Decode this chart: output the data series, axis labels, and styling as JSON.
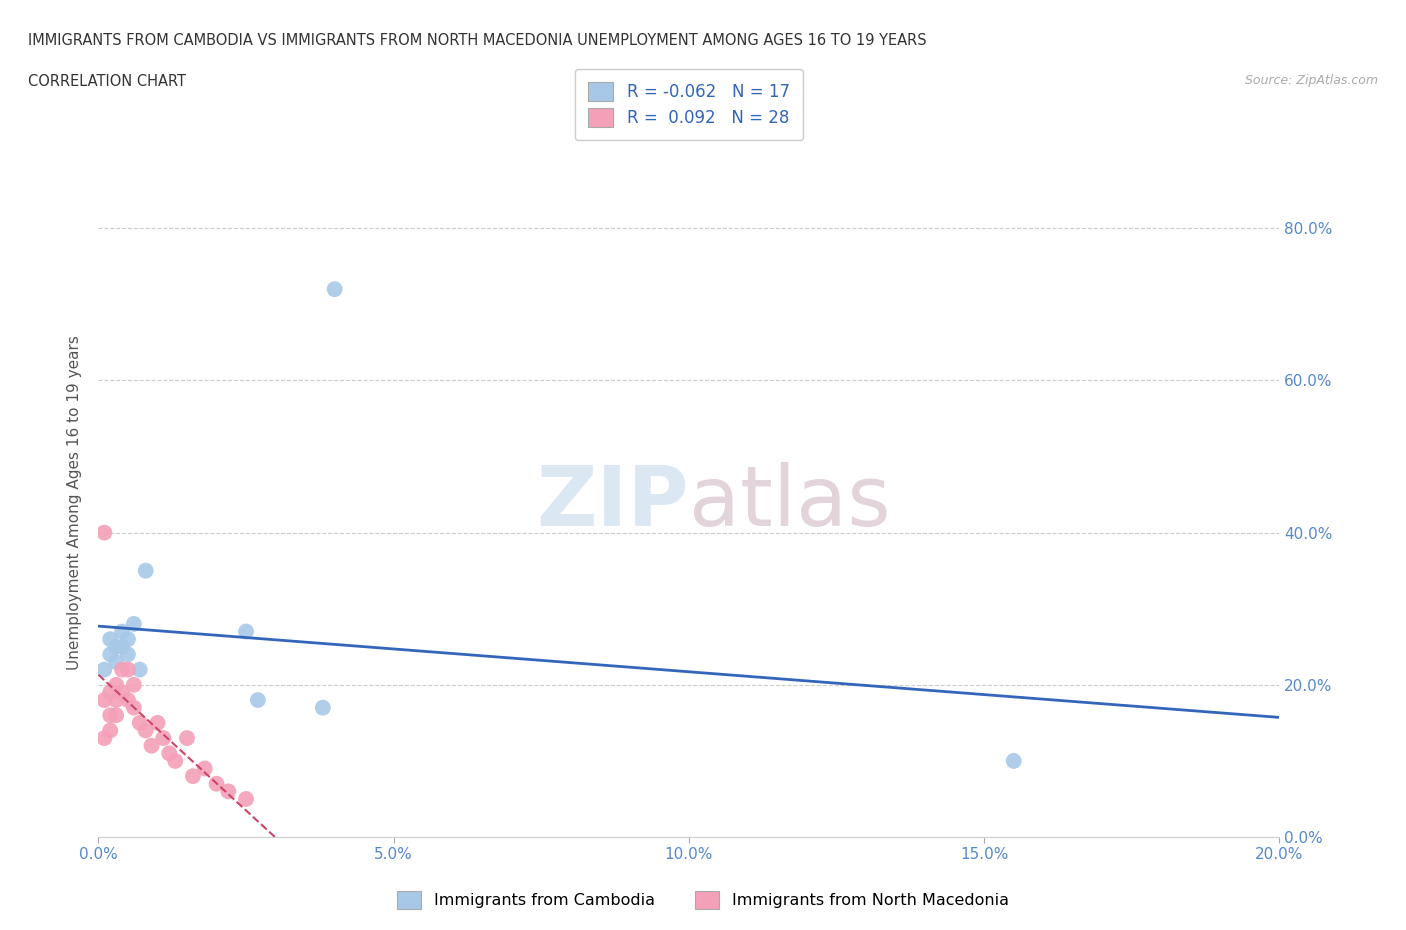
{
  "title_line1": "IMMIGRANTS FROM CAMBODIA VS IMMIGRANTS FROM NORTH MACEDONIA UNEMPLOYMENT AMONG AGES 16 TO 19 YEARS",
  "title_line2": "CORRELATION CHART",
  "source": "Source: ZipAtlas.com",
  "ylabel": "Unemployment Among Ages 16 to 19 years",
  "xlim": [
    0.0,
    0.2
  ],
  "ylim": [
    0.0,
    0.88
  ],
  "xticks": [
    0.0,
    0.05,
    0.1,
    0.15,
    0.2
  ],
  "xtick_labels": [
    "0.0%",
    "5.0%",
    "10.0%",
    "15.0%",
    "20.0%"
  ],
  "yticks": [
    0.0,
    0.2,
    0.4,
    0.6,
    0.8
  ],
  "ytick_labels": [
    "0.0%",
    "20.0%",
    "40.0%",
    "60.0%",
    "80.0%"
  ],
  "grid_color": "#cccccc",
  "background_color": "#ffffff",
  "legend_R_cambodia": "-0.062",
  "legend_N_cambodia": "17",
  "legend_R_macedonia": "0.092",
  "legend_N_macedonia": "28",
  "cambodia_color": "#a8c8e8",
  "cambodia_line_color": "#3366bb",
  "macedonia_color": "#f4a0b8",
  "macedonia_line_color": "#cc4466",
  "cambodia_points_x": [
    0.001,
    0.002,
    0.002,
    0.003,
    0.003,
    0.004,
    0.004,
    0.005,
    0.005,
    0.006,
    0.007,
    0.008,
    0.025,
    0.027,
    0.038,
    0.155,
    0.04
  ],
  "cambodia_points_y": [
    0.22,
    0.24,
    0.26,
    0.25,
    0.23,
    0.27,
    0.25,
    0.26,
    0.24,
    0.28,
    0.22,
    0.35,
    0.27,
    0.18,
    0.17,
    0.1,
    0.72
  ],
  "macedonia_points_x": [
    0.001,
    0.001,
    0.001,
    0.002,
    0.002,
    0.002,
    0.003,
    0.003,
    0.003,
    0.004,
    0.004,
    0.005,
    0.005,
    0.006,
    0.006,
    0.007,
    0.008,
    0.009,
    0.01,
    0.011,
    0.012,
    0.013,
    0.015,
    0.016,
    0.018,
    0.02,
    0.022,
    0.025
  ],
  "macedonia_points_y": [
    0.4,
    0.18,
    0.13,
    0.19,
    0.14,
    0.16,
    0.2,
    0.18,
    0.16,
    0.22,
    0.19,
    0.22,
    0.18,
    0.2,
    0.17,
    0.15,
    0.14,
    0.12,
    0.15,
    0.13,
    0.11,
    0.1,
    0.13,
    0.08,
    0.09,
    0.07,
    0.06,
    0.05
  ]
}
